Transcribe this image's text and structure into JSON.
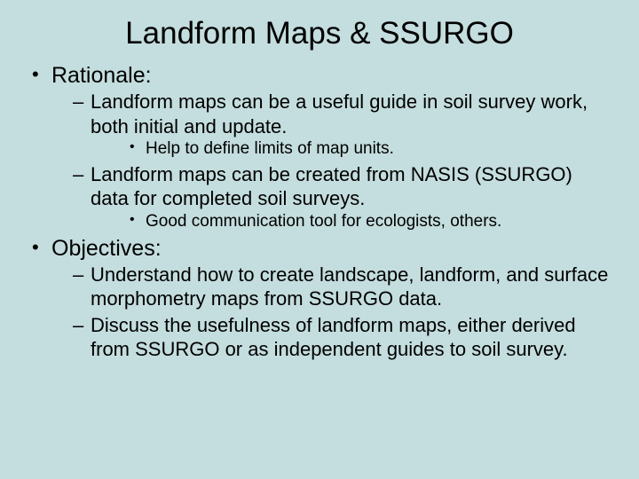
{
  "background_color": "#c4ddde",
  "text_color": "#000000",
  "font_family": "Comic Sans MS",
  "title": "Landform Maps & SSURGO",
  "title_fontsize": 35,
  "lvl1_fontsize": 25,
  "lvl2_fontsize": 22,
  "lvl3_fontsize": 19,
  "bullets": {
    "rationale": {
      "label": "Rationale:",
      "sub": {
        "a": {
          "text": "Landform maps can be a useful guide in soil survey work, both initial and update.",
          "sub": {
            "a": "Help to define limits of map units."
          }
        },
        "b": {
          "text": "Landform maps can be created from NASIS (SSURGO) data for completed soil surveys.",
          "sub": {
            "a": "Good communication tool for ecologists, others."
          }
        }
      }
    },
    "objectives": {
      "label": "Objectives:",
      "sub": {
        "a": {
          "text": "Understand how to create landscape, landform, and surface morphometry maps from SSURGO data."
        },
        "b": {
          "text": "Discuss the usefulness of landform maps, either derived from SSURGO or as independent guides to soil survey."
        }
      }
    }
  }
}
